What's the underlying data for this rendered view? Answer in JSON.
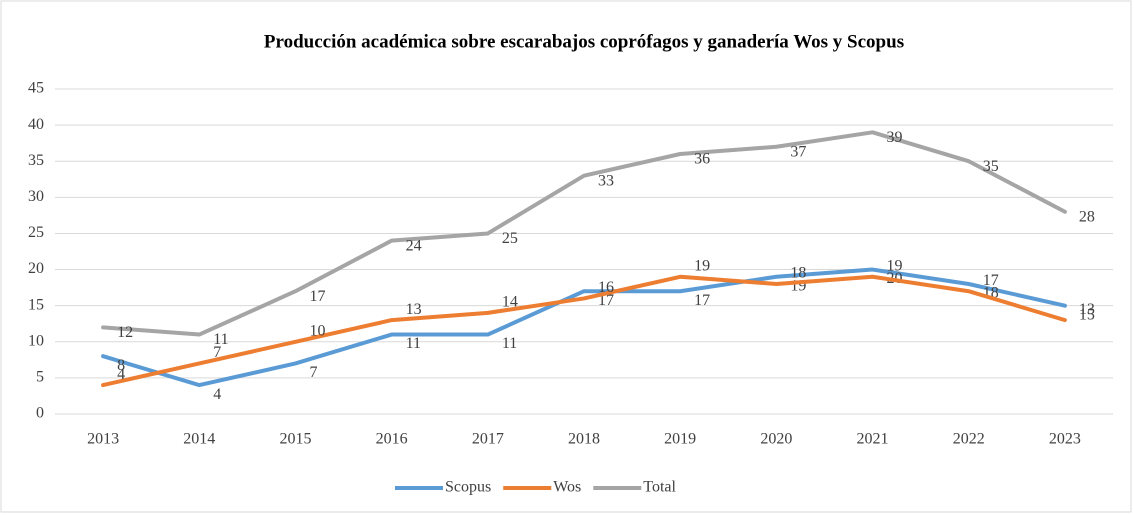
{
  "chart_data": {
    "type": "line",
    "title": "Producción académica sobre escarabajos copró­fagos y ganadería Wos y Scopus",
    "categories": [
      "2013",
      "2014",
      "2015",
      "2016",
      "2017",
      "2018",
      "2019",
      "2020",
      "2021",
      "2022",
      "2023"
    ],
    "series": [
      {
        "name": "Scopus",
        "color": "#5b9bd5",
        "values": [
          8,
          4,
          7,
          11,
          11,
          17,
          17,
          19,
          20,
          18,
          15
        ]
      },
      {
        "name": "Wos",
        "color": "#ed7d31",
        "values": [
          4,
          7,
          10,
          13,
          14,
          16,
          19,
          18,
          19,
          17,
          13
        ]
      },
      {
        "name": "Total",
        "color": "#a5a5a5",
        "values": [
          12,
          11,
          17,
          24,
          25,
          33,
          36,
          37,
          39,
          35,
          28
        ]
      }
    ],
    "ylim": [
      0,
      45
    ],
    "yticks": [
      0,
      5,
      10,
      15,
      20,
      25,
      30,
      35,
      40,
      45
    ],
    "grid": true,
    "legend": "bottom"
  }
}
